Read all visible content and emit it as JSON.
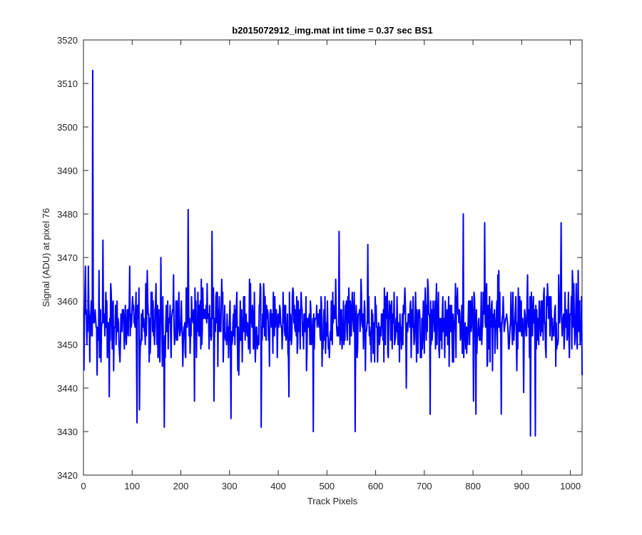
{
  "chart_data": {
    "type": "line",
    "title": "b2015072912_img.mat int time = 0.37 sec   BS1",
    "xlabel": "Track Pixels",
    "ylabel": "Signal (ADU) at pixel 76",
    "xlim": [
      0,
      1024
    ],
    "ylim": [
      3420,
      3520
    ],
    "xticks": [
      0,
      100,
      200,
      300,
      400,
      500,
      600,
      700,
      800,
      900,
      1000
    ],
    "yticks": [
      3420,
      3430,
      3440,
      3450,
      3460,
      3470,
      3480,
      3490,
      3500,
      3510,
      3520
    ],
    "grid": false,
    "line_color": "#0000ff",
    "series": [
      {
        "x_start": 1,
        "x_step": 1,
        "n_points": 1024,
        "anchor_points": [
          [
            1,
            3444
          ],
          [
            4,
            3468
          ],
          [
            7,
            3450
          ],
          [
            10,
            3468
          ],
          [
            13,
            3446
          ],
          [
            16,
            3460
          ],
          [
            19,
            3513
          ],
          [
            21,
            3455
          ],
          [
            24,
            3458
          ],
          [
            28,
            3443
          ],
          [
            32,
            3467
          ],
          [
            36,
            3446
          ],
          [
            40,
            3474
          ],
          [
            44,
            3452
          ],
          [
            49,
            3447
          ],
          [
            53,
            3438
          ],
          [
            57,
            3462
          ],
          [
            62,
            3444
          ],
          [
            66,
            3459
          ],
          [
            70,
            3453
          ],
          [
            75,
            3446
          ],
          [
            80,
            3458
          ],
          [
            84,
            3449
          ],
          [
            92,
            3452
          ],
          [
            95,
            3468
          ],
          [
            104,
            3455
          ],
          [
            110,
            3432
          ],
          [
            115,
            3435
          ],
          [
            122,
            3458
          ],
          [
            127,
            3450
          ],
          [
            131,
            3467
          ],
          [
            137,
            3448
          ],
          [
            147,
            3458
          ],
          [
            154,
            3449
          ],
          [
            159,
            3470
          ],
          [
            166,
            3431
          ],
          [
            172,
            3456
          ],
          [
            180,
            3447
          ],
          [
            190,
            3460
          ],
          [
            197,
            3454
          ],
          [
            204,
            3445
          ],
          [
            211,
            3463
          ],
          [
            215,
            3481
          ],
          [
            221,
            3452
          ],
          [
            228,
            3437
          ],
          [
            235,
            3462
          ],
          [
            243,
            3450
          ],
          [
            249,
            3456
          ],
          [
            258,
            3449
          ],
          [
            264,
            3476
          ],
          [
            268,
            3437
          ],
          [
            275,
            3462
          ],
          [
            281,
            3453
          ],
          [
            290,
            3459
          ],
          [
            298,
            3447
          ],
          [
            303,
            3433
          ],
          [
            312,
            3458
          ],
          [
            320,
            3450
          ],
          [
            331,
            3461
          ],
          [
            340,
            3452
          ],
          [
            348,
            3457
          ],
          [
            357,
            3449
          ],
          [
            365,
            3431
          ],
          [
            371,
            3461
          ],
          [
            380,
            3451
          ],
          [
            390,
            3462
          ],
          [
            398,
            3447
          ],
          [
            405,
            3455
          ],
          [
            414,
            3452
          ],
          [
            422,
            3438
          ],
          [
            430,
            3463
          ],
          [
            440,
            3450
          ],
          [
            449,
            3458
          ],
          [
            456,
            3453
          ],
          [
            466,
            3460
          ],
          [
            472,
            3430
          ],
          [
            480,
            3454
          ],
          [
            487,
            3451
          ],
          [
            496,
            3461
          ],
          [
            505,
            3447
          ],
          [
            515,
            3456
          ],
          [
            525,
            3476
          ],
          [
            531,
            3449
          ],
          [
            540,
            3460
          ],
          [
            550,
            3452
          ],
          [
            558,
            3430
          ],
          [
            566,
            3457
          ],
          [
            575,
            3449
          ],
          [
            584,
            3473
          ],
          [
            591,
            3446
          ],
          [
            600,
            3458
          ],
          [
            609,
            3452
          ],
          [
            618,
            3463
          ],
          [
            626,
            3447
          ],
          [
            635,
            3455
          ],
          [
            646,
            3450
          ],
          [
            655,
            3457
          ],
          [
            663,
            3440
          ],
          [
            672,
            3460
          ],
          [
            680,
            3451
          ],
          [
            690,
            3458
          ],
          [
            700,
            3448
          ],
          [
            707,
            3465
          ],
          [
            712,
            3434
          ],
          [
            720,
            3456
          ],
          [
            730,
            3449
          ],
          [
            738,
            3461
          ],
          [
            745,
            3452
          ],
          [
            752,
            3458
          ],
          [
            760,
            3446
          ],
          [
            768,
            3463
          ],
          [
            774,
            3451
          ],
          [
            780,
            3480
          ],
          [
            787,
            3448
          ],
          [
            795,
            3460
          ],
          [
            801,
            3437
          ],
          [
            806,
            3434
          ],
          [
            812,
            3456
          ],
          [
            818,
            3450
          ],
          [
            824,
            3478
          ],
          [
            830,
            3446
          ],
          [
            838,
            3459
          ],
          [
            846,
            3452
          ],
          [
            853,
            3467
          ],
          [
            858,
            3434
          ],
          [
            866,
            3455
          ],
          [
            874,
            3449
          ],
          [
            882,
            3462
          ],
          [
            890,
            3444
          ],
          [
            897,
            3453
          ],
          [
            904,
            3439
          ],
          [
            912,
            3466
          ],
          [
            918,
            3429
          ],
          [
            925,
            3455
          ],
          [
            928,
            3429
          ],
          [
            935,
            3450
          ],
          [
            942,
            3459
          ],
          [
            950,
            3447
          ],
          [
            957,
            3461
          ],
          [
            964,
            3452
          ],
          [
            970,
            3445
          ],
          [
            976,
            3466
          ],
          [
            981,
            3478
          ],
          [
            987,
            3449
          ],
          [
            992,
            3458
          ],
          [
            998,
            3447
          ],
          [
            1004,
            3467
          ],
          [
            1010,
            3453
          ],
          [
            1016,
            3467
          ],
          [
            1020,
            3450
          ],
          [
            1024,
            3443
          ]
        ],
        "noise_amplitude": 9,
        "mean": 3455
      }
    ]
  }
}
